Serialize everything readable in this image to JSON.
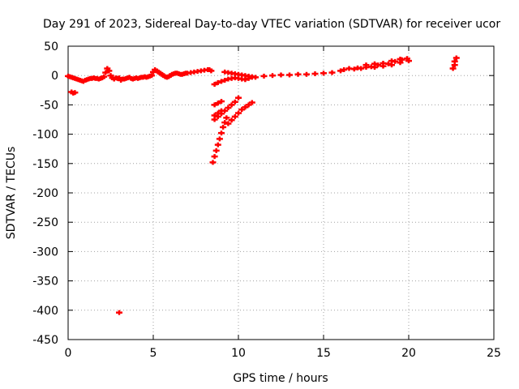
{
  "chart_data": {
    "type": "scatter",
    "title": "Day 291 of 2023, Sidereal Day-to-day VTEC variation (SDTVAR) for receiver ucor",
    "xlabel": "GPS time / hours",
    "ylabel": "SDTVAR / TECUs",
    "xlim": [
      0,
      25
    ],
    "ylim": [
      -450,
      50
    ],
    "x_ticks": [
      0,
      5,
      10,
      15,
      20,
      25
    ],
    "y_ticks": [
      50,
      0,
      -50,
      -100,
      -150,
      -200,
      -250,
      -300,
      -350,
      -400,
      -450
    ],
    "x_tick_labels": [
      "0",
      "5",
      "10",
      "15",
      "20",
      "25"
    ],
    "y_tick_labels": [
      "50",
      "0",
      "-50",
      "-100",
      "-150",
      "-200",
      "-250",
      "-300",
      "-350",
      "-400",
      "-450"
    ],
    "grid": true,
    "legend": "none",
    "marker": "plus",
    "series": [
      {
        "color": "#ff0000",
        "points": [
          [
            0.0,
            -1
          ],
          [
            0.1,
            -2
          ],
          [
            0.2,
            -3
          ],
          [
            0.3,
            -4
          ],
          [
            0.4,
            -5
          ],
          [
            0.5,
            -6
          ],
          [
            0.6,
            -7
          ],
          [
            0.7,
            -8
          ],
          [
            0.8,
            -9
          ],
          [
            0.9,
            -10
          ],
          [
            1.0,
            -8
          ],
          [
            1.1,
            -7
          ],
          [
            1.2,
            -6
          ],
          [
            1.3,
            -5
          ],
          [
            1.4,
            -5
          ],
          [
            1.5,
            -4
          ],
          [
            1.6,
            -5
          ],
          [
            1.7,
            -5
          ],
          [
            1.8,
            -6
          ],
          [
            1.9,
            -5
          ],
          [
            2.0,
            -4
          ],
          [
            2.1,
            -2
          ],
          [
            2.2,
            5
          ],
          [
            2.3,
            12
          ],
          [
            2.4,
            8
          ],
          [
            2.5,
            0
          ],
          [
            2.6,
            -4
          ],
          [
            2.7,
            -6
          ],
          [
            2.8,
            -4
          ],
          [
            2.9,
            -5
          ],
          [
            3.0,
            -4
          ],
          [
            3.1,
            -8
          ],
          [
            3.2,
            -6
          ],
          [
            3.3,
            -6
          ],
          [
            3.4,
            -5
          ],
          [
            3.5,
            -4
          ],
          [
            3.6,
            -3
          ],
          [
            3.7,
            -5
          ],
          [
            3.8,
            -6
          ],
          [
            3.9,
            -5
          ],
          [
            4.0,
            -4
          ],
          [
            4.1,
            -5
          ],
          [
            4.2,
            -4
          ],
          [
            4.3,
            -3
          ],
          [
            4.4,
            -3
          ],
          [
            4.5,
            -2
          ],
          [
            4.6,
            -3
          ],
          [
            4.7,
            -2
          ],
          [
            4.8,
            -1
          ],
          [
            4.9,
            0
          ],
          [
            5.0,
            6
          ],
          [
            5.1,
            10
          ],
          [
            5.2,
            8
          ],
          [
            5.3,
            6
          ],
          [
            5.4,
            4
          ],
          [
            5.5,
            2
          ],
          [
            5.6,
            0
          ],
          [
            5.7,
            -2
          ],
          [
            5.8,
            -3
          ],
          [
            5.9,
            -2
          ],
          [
            6.0,
            0
          ],
          [
            6.1,
            2
          ],
          [
            6.2,
            3
          ],
          [
            6.3,
            4
          ],
          [
            6.4,
            4
          ],
          [
            6.5,
            3
          ],
          [
            6.6,
            2
          ],
          [
            6.7,
            2
          ],
          [
            6.8,
            3
          ],
          [
            6.9,
            4
          ],
          [
            7.0,
            4
          ],
          [
            7.2,
            5
          ],
          [
            7.4,
            6
          ],
          [
            7.6,
            7
          ],
          [
            7.8,
            8
          ],
          [
            8.0,
            9
          ],
          [
            8.2,
            10
          ],
          [
            8.3,
            10
          ],
          [
            8.4,
            8
          ],
          [
            0.2,
            -28
          ],
          [
            0.3,
            -30
          ],
          [
            0.4,
            -29
          ],
          [
            8.6,
            -15
          ],
          [
            8.8,
            -12
          ],
          [
            9.0,
            -10
          ],
          [
            9.2,
            -8
          ],
          [
            9.4,
            -6
          ],
          [
            9.6,
            -5
          ],
          [
            9.8,
            -4
          ],
          [
            10.0,
            -5
          ],
          [
            10.2,
            -6
          ],
          [
            10.4,
            -7
          ],
          [
            10.6,
            -5
          ],
          [
            10.8,
            -3
          ],
          [
            9.2,
            6
          ],
          [
            9.4,
            5
          ],
          [
            9.6,
            4
          ],
          [
            9.8,
            3
          ],
          [
            10.0,
            2
          ],
          [
            10.2,
            1
          ],
          [
            10.4,
            0
          ],
          [
            10.6,
            -1
          ],
          [
            10.8,
            -2
          ],
          [
            11.0,
            -3
          ],
          [
            8.5,
            -148
          ],
          [
            8.6,
            -138
          ],
          [
            8.7,
            -128
          ],
          [
            8.8,
            -118
          ],
          [
            8.9,
            -108
          ],
          [
            9.0,
            -98
          ],
          [
            9.1,
            -88
          ],
          [
            9.2,
            -80
          ],
          [
            9.3,
            -72
          ],
          [
            8.6,
            -75
          ],
          [
            8.8,
            -70
          ],
          [
            9.0,
            -65
          ],
          [
            9.2,
            -60
          ],
          [
            9.4,
            -55
          ],
          [
            9.6,
            -50
          ],
          [
            9.8,
            -45
          ],
          [
            10.0,
            -38
          ],
          [
            8.6,
            -68
          ],
          [
            8.8,
            -64
          ],
          [
            9.0,
            -60
          ],
          [
            9.4,
            -82
          ],
          [
            9.6,
            -76
          ],
          [
            9.8,
            -70
          ],
          [
            10.0,
            -64
          ],
          [
            10.2,
            -58
          ],
          [
            10.4,
            -54
          ],
          [
            10.6,
            -50
          ],
          [
            10.8,
            -46
          ],
          [
            8.6,
            -50
          ],
          [
            8.8,
            -47
          ],
          [
            9.0,
            -44
          ],
          [
            11.5,
            -1
          ],
          [
            12.0,
            0
          ],
          [
            12.5,
            1
          ],
          [
            13.0,
            1
          ],
          [
            13.5,
            2
          ],
          [
            14.0,
            2
          ],
          [
            14.5,
            3
          ],
          [
            15.0,
            4
          ],
          [
            15.5,
            5
          ],
          [
            16.0,
            8
          ],
          [
            16.5,
            12
          ],
          [
            17.0,
            13
          ],
          [
            17.5,
            14
          ],
          [
            18.0,
            14
          ],
          [
            18.5,
            16
          ],
          [
            19.0,
            18
          ],
          [
            19.5,
            22
          ],
          [
            20.0,
            25
          ],
          [
            16.2,
            10
          ],
          [
            16.8,
            11
          ],
          [
            17.2,
            12
          ],
          [
            17.8,
            15
          ],
          [
            18.2,
            18
          ],
          [
            18.8,
            20
          ],
          [
            19.2,
            24
          ],
          [
            19.6,
            27
          ],
          [
            19.9,
            29
          ],
          [
            17.5,
            18
          ],
          [
            18.0,
            20
          ],
          [
            18.5,
            21
          ],
          [
            19.0,
            25
          ],
          [
            19.5,
            28
          ],
          [
            22.6,
            12
          ],
          [
            22.7,
            18
          ],
          [
            22.7,
            24
          ],
          [
            22.8,
            30
          ],
          [
            3.0,
            -404
          ]
        ]
      }
    ]
  }
}
